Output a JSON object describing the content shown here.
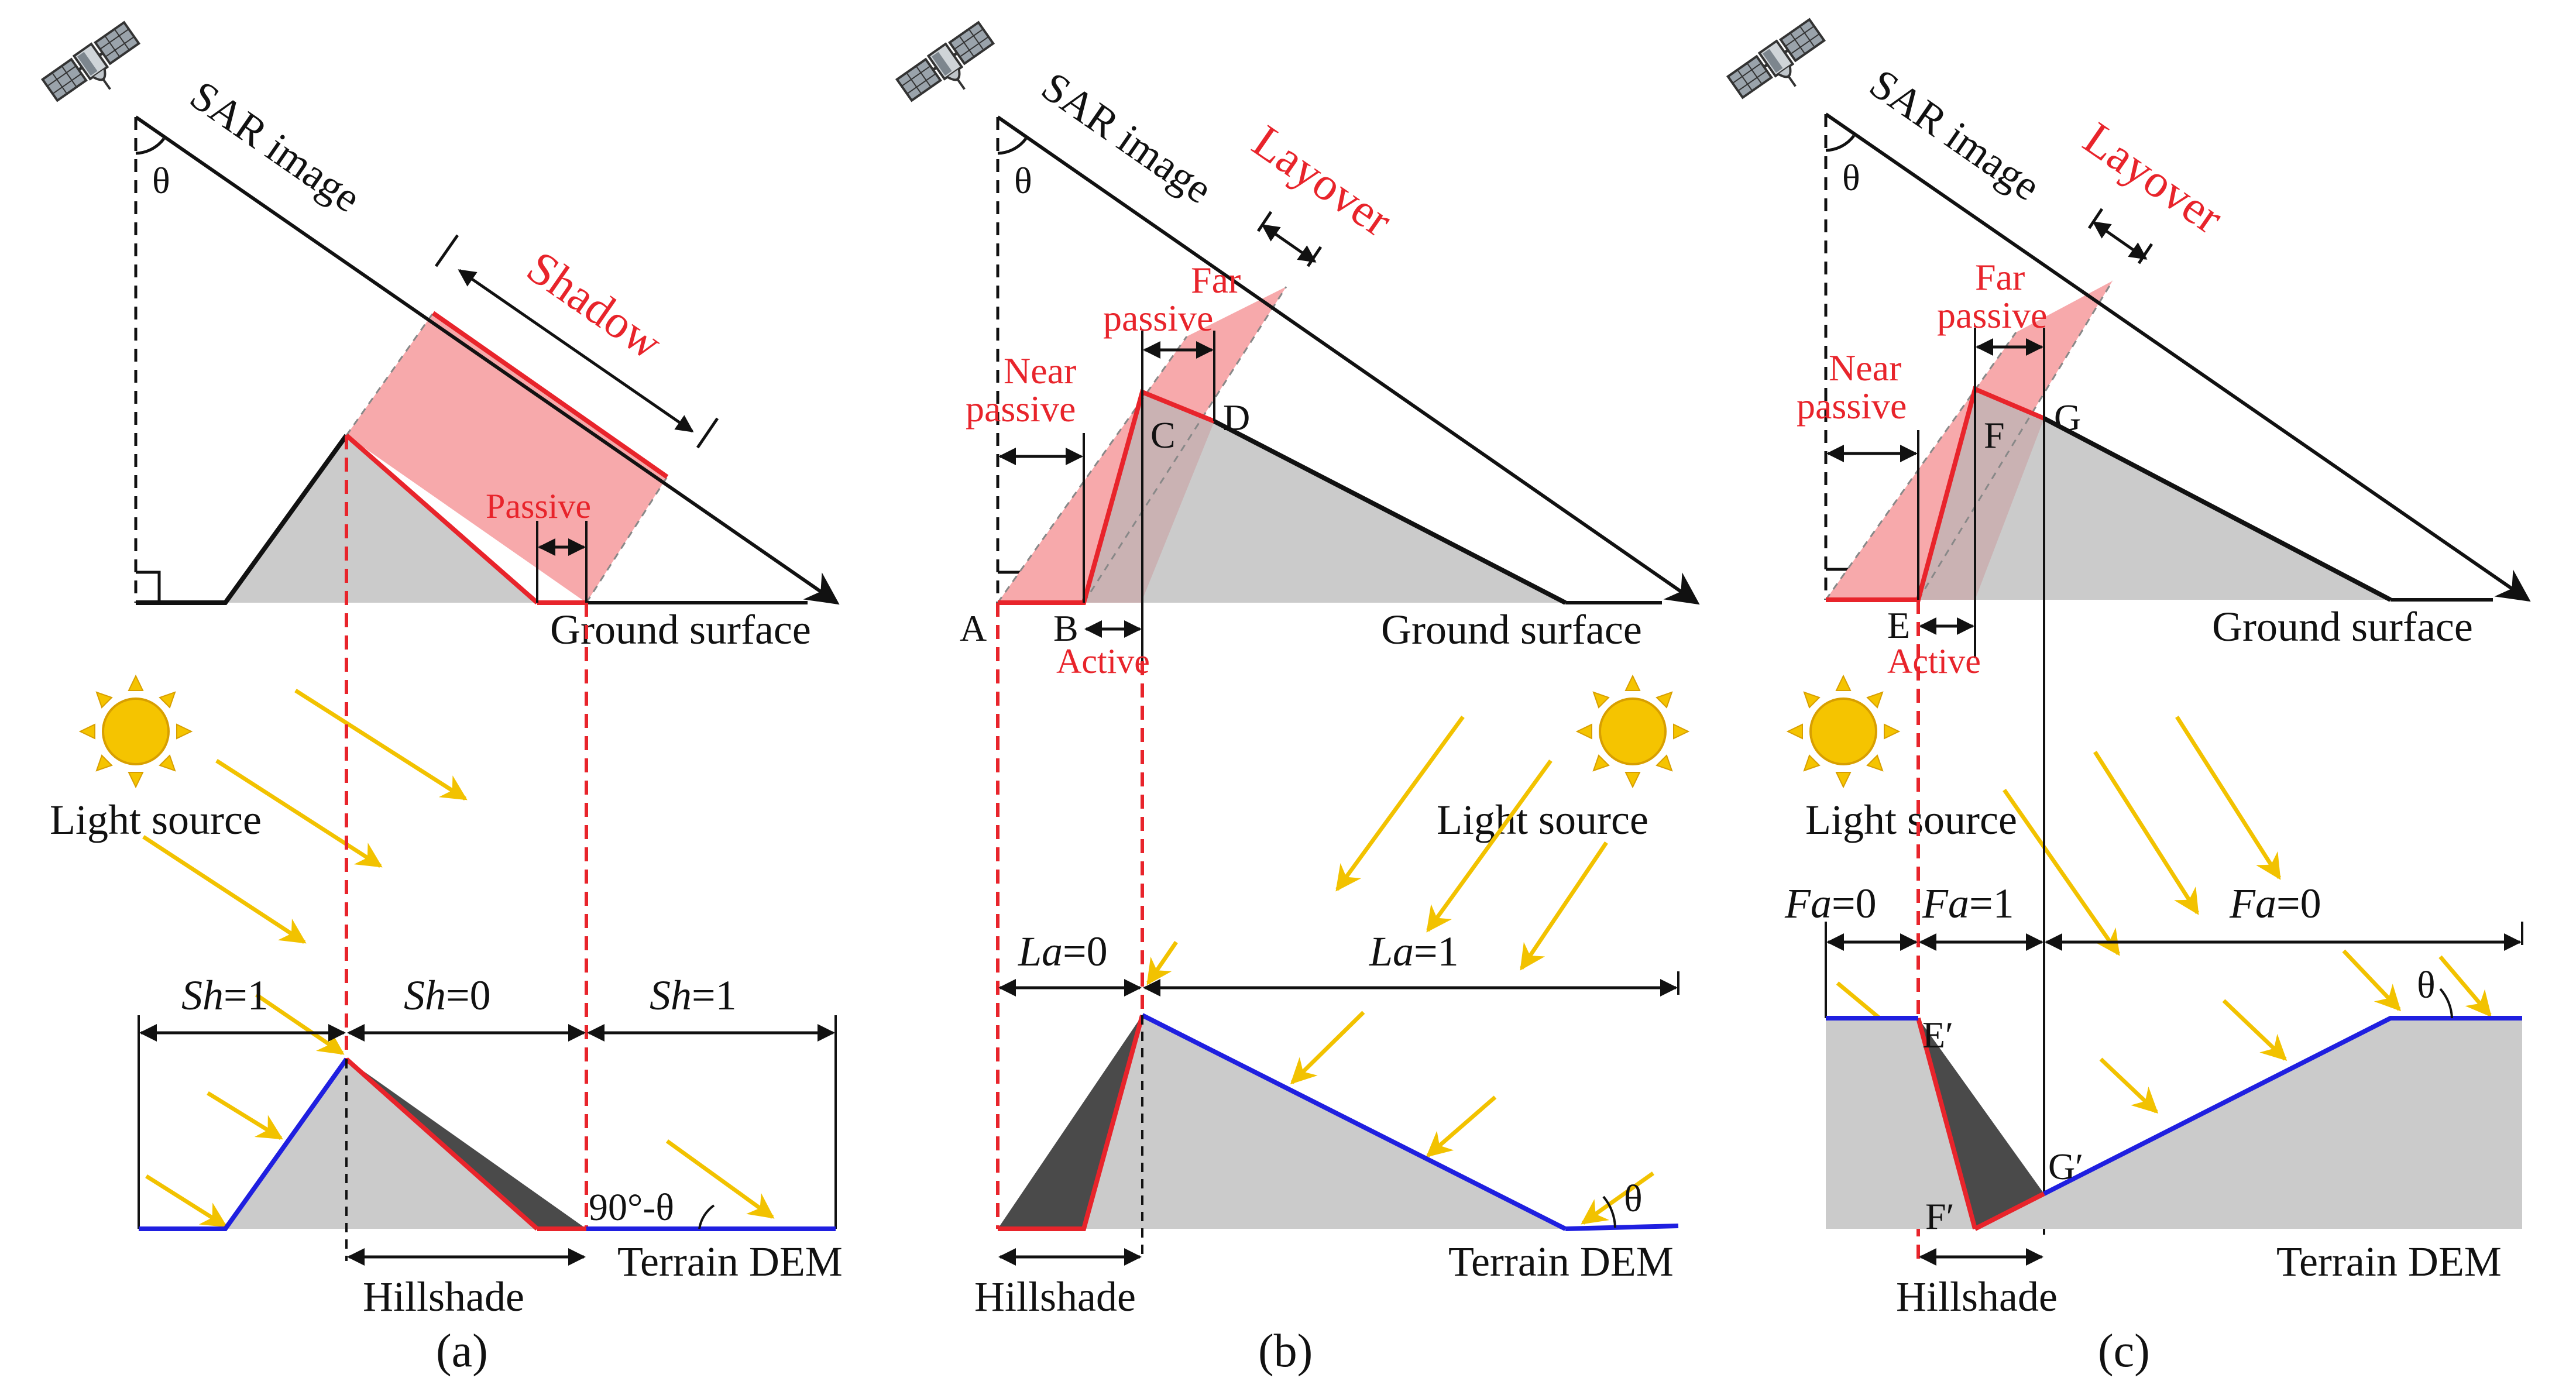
{
  "panels": [
    {
      "caption": "(a)",
      "sar_label": "SAR image",
      "theta": "θ",
      "region_label": "Shadow",
      "passive_label": "Passive",
      "ground_label": "Ground surface",
      "light_label": "Light source",
      "hillshade_label": "Hillshade",
      "dem_label": "Terrain DEM",
      "angle_label": "90°-θ",
      "index": {
        "name": "Sh",
        "segments": [
          {
            "value": "=1"
          },
          {
            "value": "=0"
          },
          {
            "value": "=1"
          }
        ]
      }
    },
    {
      "caption": "(b)",
      "sar_label": "SAR image",
      "theta": "θ",
      "region_label": "Layover",
      "near_passive_1": "Near",
      "near_passive_2": "passive",
      "far_passive_1": "Far",
      "far_passive_2": "passive",
      "active_label": "Active",
      "points": [
        "A",
        "B",
        "C",
        "D"
      ],
      "ground_label": "Ground surface",
      "light_label": "Light source",
      "hillshade_label": "Hillshade",
      "dem_label": "Terrain DEM",
      "angle_label": "θ",
      "index": {
        "name": "La",
        "segments": [
          {
            "value": "=0"
          },
          {
            "value": "=1"
          }
        ]
      }
    },
    {
      "caption": "(c)",
      "sar_label": "SAR image",
      "theta": "θ",
      "region_label": "Layover",
      "near_passive_1": "Near",
      "near_passive_2": "passive",
      "far_passive_1": "Far",
      "far_passive_2": "passive",
      "active_label": "Active",
      "points": [
        "E",
        "F",
        "G"
      ],
      "dem_points": [
        "E′",
        "F′",
        "G′"
      ],
      "ground_label": "Ground surface",
      "light_label": "Light source",
      "hillshade_label": "Hillshade",
      "dem_label": "Terrain DEM",
      "angle_label": "θ",
      "index": {
        "name": "Fa",
        "segments": [
          {
            "value": "=0"
          },
          {
            "value": "=1"
          },
          {
            "value": "=0"
          }
        ]
      }
    }
  ],
  "colors": {
    "shadow_fill": "#f7a9ab",
    "red": "#e8242b",
    "terrain": "#cbcbcb",
    "terrain_dark": "#4a4a4a",
    "dem_line": "#1f1fe0",
    "sun": "#f5c400",
    "light_ray": "#f2c200"
  },
  "icons": [
    "satellite-icon",
    "sun-icon"
  ]
}
